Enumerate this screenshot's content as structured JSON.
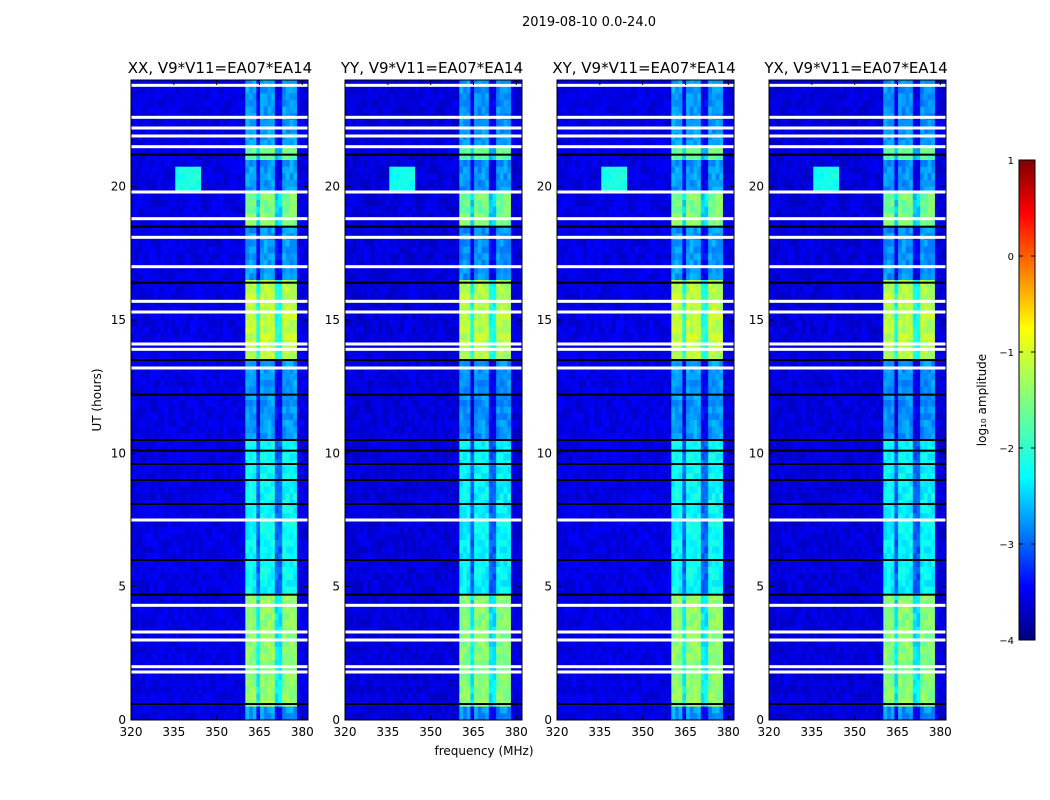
{
  "chart_data": {
    "type": "heatmap",
    "suptitle": "2019-08-10 0.0-24.0",
    "xlabel": "frequency (MHz)",
    "ylabel": "UT (hours)",
    "xlim": [
      320,
      382
    ],
    "ylim": [
      0,
      24
    ],
    "x_ticks": [
      "320",
      "335",
      "350",
      "365",
      "380"
    ],
    "y_ticks": [
      "0",
      "5",
      "10",
      "15",
      "20"
    ],
    "panels": [
      {
        "title": "XX, V9*V11=EA07*EA14"
      },
      {
        "title": "YY, V9*V11=EA07*EA14"
      },
      {
        "title": "XY, V9*V11=EA07*EA14"
      },
      {
        "title": "YX, V9*V11=EA07*EA14"
      }
    ],
    "colorbar": {
      "label": "log₁₀ amplitude",
      "range": [
        -4,
        1
      ],
      "ticks": [
        "1",
        "0",
        "−1",
        "−2",
        "−3",
        "−4"
      ],
      "colormap": "jet"
    },
    "background_level": -3.5,
    "bright_band_mhz": [
      359.5,
      378.5
    ],
    "bright_band_levels": [
      {
        "ut": [
          0.5,
          4.8
        ],
        "level": -1.4
      },
      {
        "ut": [
          4.8,
          10.5
        ],
        "level": -2.1
      },
      {
        "ut": [
          13.5,
          16.5
        ],
        "level": -1.2
      },
      {
        "ut": [
          18.5,
          19.8
        ],
        "level": -1.5
      },
      {
        "ut": [
          21.0,
          21.5
        ],
        "level": -1.6
      }
    ],
    "feature_blob": {
      "mhz": [
        336,
        345
      ],
      "ut": [
        19.8,
        20.8
      ],
      "level": -2.0
    },
    "flagged_ut_white": [
      1.8,
      2.0,
      3.0,
      3.3,
      4.3,
      7.5,
      13.2,
      13.9,
      14.1,
      15.3,
      15.7,
      17.0,
      18.1,
      18.8,
      19.8,
      21.5,
      21.9,
      22.2,
      22.6,
      23.8
    ],
    "flagged_ut_black": [
      0.6,
      4.7,
      6.0,
      8.1,
      9.0,
      9.6,
      10.1,
      10.5,
      12.2,
      13.5,
      16.4,
      18.5,
      21.2
    ]
  }
}
